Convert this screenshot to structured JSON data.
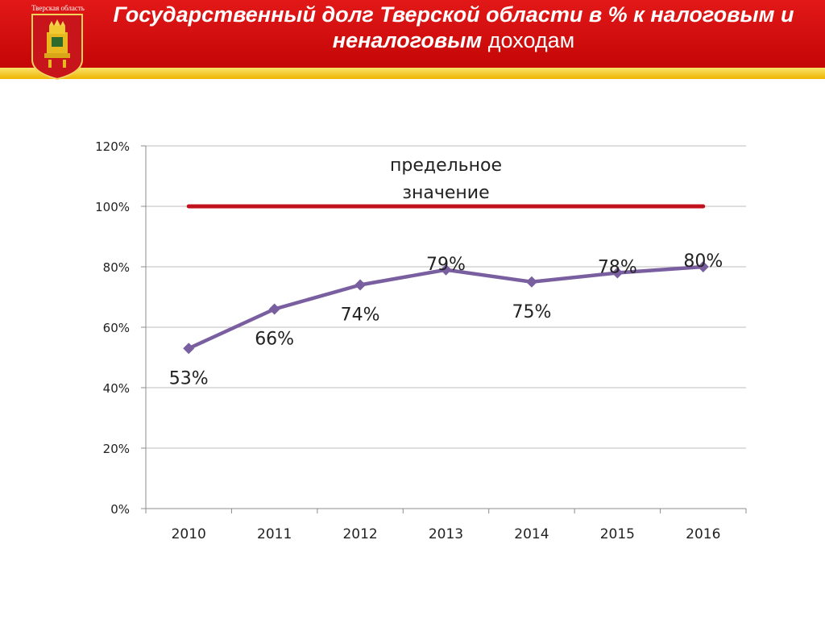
{
  "header": {
    "region_label": "Тверская область",
    "title_line1_bold": "Государственный долг Тверской области в % к налоговым и",
    "title_line2_bold": "неналоговым",
    "title_line2_normal": "доходам",
    "colors": {
      "red": "#d10f0f",
      "stripe": "#f5c400"
    },
    "emblem_icon": "tver-coat-of-arms-icon"
  },
  "chart_data": {
    "type": "line",
    "categories": [
      "2010",
      "2011",
      "2012",
      "2013",
      "2014",
      "2015",
      "2016"
    ],
    "series": [
      {
        "values": [
          53,
          66,
          74,
          79,
          75,
          78,
          80
        ],
        "labels": [
          "53%",
          "66%",
          "74%",
          "79%",
          "75%",
          "78%",
          "80%"
        ],
        "color": "#7a5fa0",
        "marker": "diamond"
      }
    ],
    "threshold": {
      "value": 100,
      "label_line1": "предельное",
      "label_line2": "значение",
      "color": "#c0111d"
    },
    "ylim": [
      0,
      120
    ],
    "yticks": [
      "0%",
      "20%",
      "40%",
      "60%",
      "80%",
      "100%",
      "120%"
    ],
    "grid": true,
    "legend": "none"
  }
}
